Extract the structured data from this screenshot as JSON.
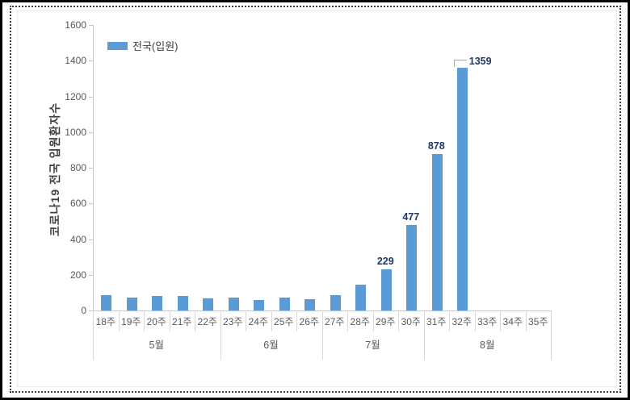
{
  "chart_data": {
    "type": "bar",
    "title": "",
    "ylabel": "코로나19 전국 입원환자수",
    "xlabel": "",
    "legend": [
      {
        "name": "전국(입원)",
        "color": "#5B9BD5"
      }
    ],
    "legend_position": "top-left-inside",
    "grid": false,
    "ylim": [
      0,
      1600
    ],
    "ytick_step": 200,
    "yticks": [
      0,
      200,
      400,
      600,
      800,
      1000,
      1200,
      1400,
      1600
    ],
    "categories": [
      "18주",
      "19주",
      "20주",
      "21주",
      "22주",
      "23주",
      "24주",
      "25주",
      "26주",
      "27주",
      "28주",
      "29주",
      "30주",
      "31주",
      "32주",
      "33주",
      "34주",
      "35주"
    ],
    "values": [
      86,
      72,
      81,
      81,
      68,
      72,
      60,
      71,
      63,
      86,
      145,
      229,
      477,
      878,
      1359,
      null,
      null,
      null
    ],
    "data_labels": [
      null,
      null,
      null,
      null,
      null,
      null,
      null,
      null,
      null,
      null,
      null,
      "229",
      "477",
      "878",
      "1359",
      null,
      null,
      null
    ],
    "callout_category": "32주",
    "month_groups": [
      {
        "label": "5월",
        "span": 5
      },
      {
        "label": "6월",
        "span": 4
      },
      {
        "label": "7월",
        "span": 4
      },
      {
        "label": "8월",
        "span": 5
      }
    ],
    "colors": {
      "bar": "#5B9BD5",
      "data_label": "#1F3864",
      "axis_text": "#595959",
      "axis_line": "#C6C6C6",
      "separator": "#D9D9D9",
      "leader_line": "#A6A6A6",
      "ylabel_text": "#404040"
    }
  }
}
